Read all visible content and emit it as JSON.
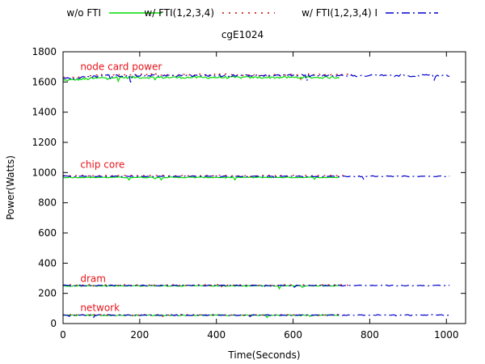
{
  "chart_data": {
    "type": "line",
    "title": "cgE1024",
    "xlabel": "Time(Seconds)",
    "ylabel": "Power(Watts)",
    "xlim": [
      0,
      1050
    ],
    "ylim": [
      0,
      1800
    ],
    "xticks": [
      0,
      200,
      400,
      600,
      800,
      1000
    ],
    "yticks": [
      0,
      200,
      400,
      600,
      800,
      1000,
      1200,
      1400,
      1600,
      1800
    ],
    "grid": false,
    "legend_position": "top",
    "series": [
      {
        "name": "w/o FTI",
        "color": "#00dd00",
        "style": "solid",
        "t_end": 720,
        "levels": {
          "node_card": 1630,
          "chip": 968,
          "dram": 250,
          "network": 55
        }
      },
      {
        "name": "w/ FTI(1,2,3,4)",
        "color": "#cc0000",
        "style": "dotted",
        "t_end": 745,
        "levels": {
          "node_card": 1648,
          "chip": 980,
          "dram": 255,
          "network": 57
        }
      },
      {
        "name": "w/ FTI(1,2,3,4) I",
        "color": "#0000cc",
        "style": "dashdot",
        "t_end": 1010,
        "levels": {
          "node_card": 1642,
          "chip": 975,
          "dram": 252,
          "network": 56
        }
      }
    ],
    "annotations": [
      {
        "text": "node card power",
        "x": 45,
        "y": 1680
      },
      {
        "text": "chip core",
        "x": 45,
        "y": 1030
      },
      {
        "text": "dram",
        "x": 45,
        "y": 275
      },
      {
        "text": "network",
        "x": 45,
        "y": 82
      }
    ]
  }
}
